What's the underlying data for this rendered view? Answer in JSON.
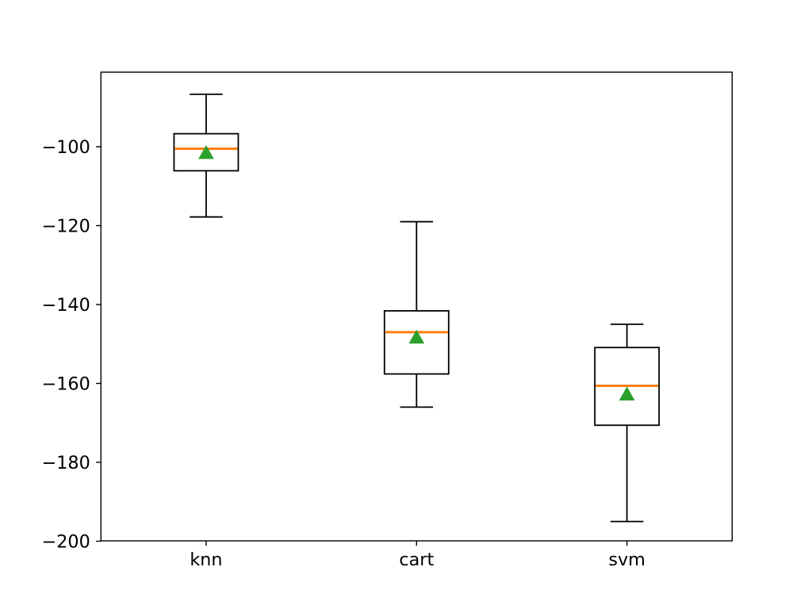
{
  "chart_data": {
    "type": "boxplot",
    "title": "",
    "categories": [
      "knn",
      "cart",
      "svm"
    ],
    "ylim": [
      -199.9,
      -81.1
    ],
    "yticks": [
      -100,
      -120,
      -140,
      -160,
      -180,
      -200
    ],
    "ytick_labels": [
      "−100",
      "−120",
      "−140",
      "−160",
      "−180",
      "−200"
    ],
    "grid": false,
    "legend": false,
    "showmeans": true,
    "series": [
      {
        "name": "knn",
        "whislo": -117.8,
        "q1": -106.1,
        "med": -100.5,
        "q3": -96.7,
        "whishi": -86.7,
        "mean": -101.5
      },
      {
        "name": "cart",
        "whislo": -166.0,
        "q1": -157.6,
        "med": -147.0,
        "q3": -141.6,
        "whishi": -119.0,
        "mean": -148.3
      },
      {
        "name": "svm",
        "whislo": -195.0,
        "q1": -170.6,
        "med": -160.6,
        "q3": -150.9,
        "whishi": -145.0,
        "mean": -162.7
      }
    ],
    "colors": {
      "box": "#000000",
      "median": "#ff7f0e",
      "mean_marker": "#2ca02c",
      "background": "#ffffff"
    }
  }
}
